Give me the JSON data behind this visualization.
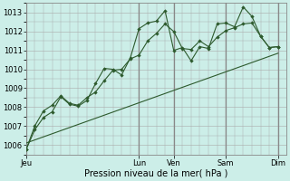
{
  "bg_color": "#cceee8",
  "grid_color": "#aaaaaa",
  "line_color": "#2d5a2d",
  "ylabel_text": "Pression niveau de la mer( hPa )",
  "ylim": [
    1005.5,
    1013.5
  ],
  "yticks": [
    1006,
    1007,
    1008,
    1009,
    1010,
    1011,
    1012,
    1013
  ],
  "xtick_labels": [
    "Jeu",
    "Lun",
    "Ven",
    "Sam",
    "Dim"
  ],
  "xtick_positions": [
    0,
    13,
    17,
    23,
    29
  ],
  "xlim": [
    0,
    30
  ],
  "series1_x": [
    0,
    1,
    2,
    3,
    4,
    5,
    6,
    7,
    8,
    9,
    10,
    11,
    12,
    13,
    14,
    15,
    16,
    17,
    18,
    19,
    20,
    21,
    22,
    23,
    24,
    25,
    26,
    27,
    28,
    29
  ],
  "series1_y": [
    1005.75,
    1006.8,
    1007.45,
    1007.75,
    1008.55,
    1008.15,
    1008.05,
    1008.35,
    1009.25,
    1010.05,
    1010.0,
    1009.7,
    1010.6,
    1012.15,
    1012.45,
    1012.55,
    1013.1,
    1011.0,
    1011.15,
    1010.45,
    1011.2,
    1011.1,
    1012.4,
    1012.45,
    1012.25,
    1013.3,
    1012.8,
    1011.75,
    1011.15,
    1011.2
  ],
  "series2_x": [
    0,
    1,
    2,
    3,
    4,
    5,
    6,
    7,
    8,
    9,
    10,
    11,
    12,
    13,
    14,
    15,
    16,
    17,
    18,
    19,
    20,
    21,
    22,
    23,
    24,
    25,
    26,
    27,
    28,
    29
  ],
  "series2_y": [
    1005.75,
    1007.0,
    1007.8,
    1008.1,
    1008.6,
    1008.2,
    1008.1,
    1008.5,
    1008.8,
    1009.4,
    1009.95,
    1010.0,
    1010.55,
    1010.75,
    1011.5,
    1011.9,
    1012.4,
    1012.0,
    1011.1,
    1011.05,
    1011.5,
    1011.2,
    1011.7,
    1012.05,
    1012.2,
    1012.4,
    1012.45,
    1011.75,
    1011.15,
    1011.2
  ],
  "series3_x": [
    0,
    29
  ],
  "series3_y": [
    1006.1,
    1010.85
  ],
  "major_vline_positions": [
    0,
    13,
    17,
    23,
    29
  ],
  "n_points": 30,
  "ylabel_fontsize": 7,
  "tick_fontsize": 6
}
